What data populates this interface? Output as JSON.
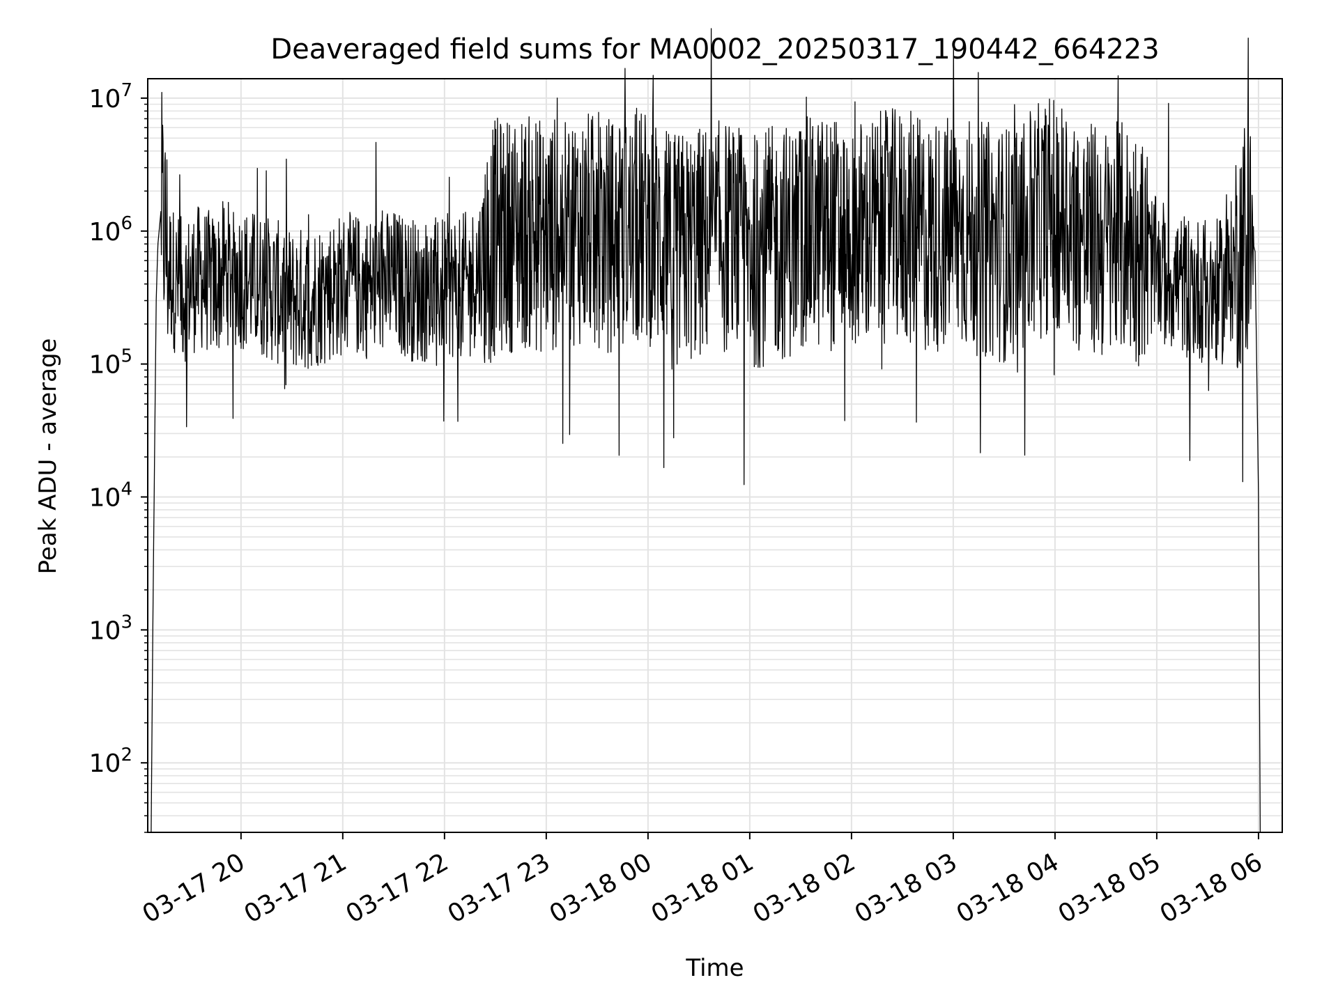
{
  "chart_data": {
    "type": "line",
    "title": "Deaveraged field sums for MA0002_20250317_190442_664223",
    "xlabel": "Time",
    "ylabel": "Peak ADU - average",
    "yscale": "log",
    "ylim": [
      30,
      14000000
    ],
    "xlim": [
      "03-17 19:05",
      "03-18 06:14"
    ],
    "grid": true,
    "grid_minor": true,
    "line_color": "#000000",
    "x_ticks": [
      "03-17 20",
      "03-17 21",
      "03-17 22",
      "03-17 23",
      "03-18 00",
      "03-18 01",
      "03-18 02",
      "03-18 03",
      "03-18 04",
      "03-18 05",
      "03-18 06"
    ],
    "y_ticks": [
      {
        "base": "10",
        "exp": "2",
        "value": 100
      },
      {
        "base": "10",
        "exp": "3",
        "value": 1000
      },
      {
        "base": "10",
        "exp": "4",
        "value": 10000
      },
      {
        "base": "10",
        "exp": "5",
        "value": 100000
      },
      {
        "base": "10",
        "exp": "6",
        "value": 1000000
      },
      {
        "base": "10",
        "exp": "7",
        "value": 10000000
      }
    ],
    "series": [
      {
        "values_note_excluded": true,
        "x": [
          "03-17 19:07",
          "03-17 19:08",
          "03-17 19:09",
          "03-17 19:10",
          "03-17 19:11",
          "03-17 19:13",
          "03-17 19:15",
          "03-17 19:18",
          "03-17 19:22",
          "03-17 19:26",
          "03-17 19:30",
          "03-17 19:35",
          "03-17 19:40",
          "03-17 19:45",
          "03-17 19:50",
          "03-17 20:00",
          "03-17 20:10",
          "03-17 20:20",
          "03-17 20:30",
          "03-17 20:40",
          "03-17 20:50",
          "03-17 21:00",
          "03-17 21:15",
          "03-17 21:30",
          "03-17 21:45",
          "03-17 22:00",
          "03-17 22:15",
          "03-17 22:30",
          "03-17 22:45",
          "03-17 23:00",
          "03-17 23:15",
          "03-17 23:30",
          "03-17 23:45",
          "03-18 00:00",
          "03-18 00:15",
          "03-18 00:30",
          "03-18 00:45",
          "03-18 01:00",
          "03-18 01:15",
          "03-18 01:30",
          "03-18 01:45",
          "03-18 02:00",
          "03-18 02:15",
          "03-18 02:30",
          "03-18 02:45",
          "03-18 03:00",
          "03-18 03:15",
          "03-18 03:30",
          "03-18 03:45",
          "03-18 04:00",
          "03-18 04:15",
          "03-18 04:30",
          "03-18 04:45",
          "03-18 05:00",
          "03-18 05:15",
          "03-18 05:30",
          "03-18 05:40",
          "03-18 05:50",
          "03-18 05:55",
          "03-18 05:58",
          "03-18 06:00",
          "03-18 06:01"
        ],
        "values": [
          30,
          1000,
          20000,
          300000,
          800000,
          1500000,
          1000000,
          500000,
          400000,
          350000,
          400000,
          450000,
          420000,
          380000,
          500000,
          450000,
          400000,
          350000,
          300000,
          320000,
          350000,
          400000,
          380000,
          420000,
          350000,
          380000,
          400000,
          900000,
          1000000,
          900000,
          1100000,
          1000000,
          900000,
          1100000,
          700000,
          800000,
          900000,
          700000,
          800000,
          900000,
          1000000,
          900000,
          1000000,
          1100000,
          900000,
          1000000,
          900000,
          800000,
          1000000,
          1500000,
          900000,
          800000,
          900000,
          500000,
          400000,
          350000,
          350000,
          800000,
          1000000,
          700000,
          10000,
          30
        ]
      }
    ]
  }
}
